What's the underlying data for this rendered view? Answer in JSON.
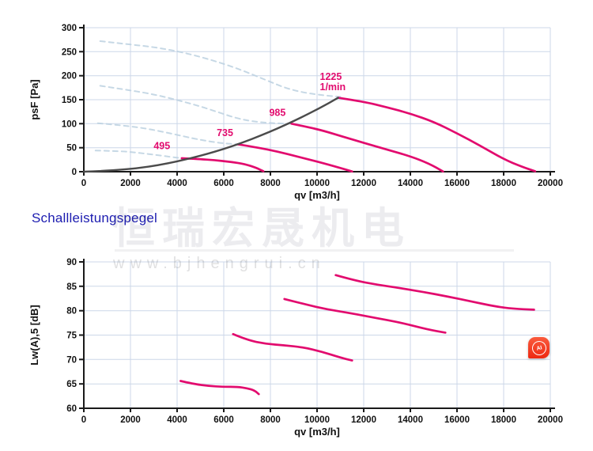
{
  "section_title": "Schallleistungspegel",
  "watermark": {
    "cn": "恒瑞宏晟机电",
    "url": "www.bjhengrui.cn"
  },
  "ai_badge": {
    "label": "AI"
  },
  "colors": {
    "pink": "#e20b6e",
    "dark": "#4b4b4b",
    "dashed": "#bcd1e1",
    "grid": "#ccd7e8",
    "axis": "#1a1a1a",
    "title_blue": "#1c1cb0",
    "badge_red": "#ee2912"
  },
  "chart_data": [
    {
      "type": "line",
      "xlabel": "qv [m3/h]",
      "ylabel": "psF [Pa]",
      "xlim": [
        0,
        20000
      ],
      "xstep": 2000,
      "ylim": [
        0,
        300
      ],
      "ystep": 50,
      "grid": true,
      "legend_position": "none",
      "curve_labels": [
        {
          "text": "495",
          "q": 3350,
          "v": 47,
          "anchor": "middle"
        },
        {
          "text": "735",
          "q": 6050,
          "v": 74,
          "anchor": "middle"
        },
        {
          "text": "985",
          "q": 8300,
          "v": 116,
          "anchor": "middle"
        },
        {
          "text": "1225",
          "q": 10120,
          "v": 191,
          "anchor": "start"
        },
        {
          "text": "1/min",
          "q": 10120,
          "v": 170,
          "anchor": "start"
        }
      ],
      "series": [
        {
          "name": "fan-curve-1225-unstable",
          "style": "dashed",
          "color": "dashed",
          "points": [
            [
              700,
              272
            ],
            [
              1800,
              266
            ],
            [
              2800,
              261
            ],
            [
              3800,
              253
            ],
            [
              4800,
              242
            ],
            [
              5800,
              228
            ],
            [
              6800,
              211
            ],
            [
              7800,
              191
            ],
            [
              8600,
              175
            ],
            [
              9300,
              166
            ],
            [
              10100,
              160
            ],
            [
              11000,
              156
            ]
          ]
        },
        {
          "name": "fan-curve-985-unstable",
          "style": "dashed",
          "color": "dashed",
          "points": [
            [
              700,
              179
            ],
            [
              1800,
              171
            ],
            [
              2800,
              163
            ],
            [
              3800,
              152
            ],
            [
              4800,
              139
            ],
            [
              5700,
              125
            ],
            [
              6500,
              112
            ],
            [
              7200,
              105
            ],
            [
              8000,
              101
            ],
            [
              8900,
              100
            ]
          ]
        },
        {
          "name": "fan-curve-735-unstable",
          "style": "dashed",
          "color": "dashed",
          "points": [
            [
              600,
              101
            ],
            [
              1800,
              96
            ],
            [
              2800,
              89
            ],
            [
              3800,
              79
            ],
            [
              4700,
              69
            ],
            [
              5400,
              63
            ],
            [
              6000,
              59
            ],
            [
              6600,
              57
            ]
          ]
        },
        {
          "name": "fan-curve-495-unstable",
          "style": "dashed",
          "color": "dashed",
          "points": [
            [
              500,
              44
            ],
            [
              1600,
              43
            ],
            [
              2400,
              39
            ],
            [
              3100,
              35
            ],
            [
              3700,
              31
            ],
            [
              4200,
              28
            ]
          ]
        },
        {
          "name": "fan-curve-495",
          "style": "solid",
          "color": "pink",
          "points": [
            [
              4200,
              28
            ],
            [
              4900,
              26.5
            ],
            [
              5600,
              24
            ],
            [
              6300,
              20.5
            ],
            [
              6900,
              16
            ],
            [
              7400,
              8
            ],
            [
              7700,
              1
            ]
          ]
        },
        {
          "name": "fan-curve-735",
          "style": "solid",
          "color": "pink",
          "points": [
            [
              6600,
              57
            ],
            [
              7400,
              51
            ],
            [
              8300,
              42
            ],
            [
              9200,
              31
            ],
            [
              10100,
              20
            ],
            [
              10900,
              9
            ],
            [
              11500,
              0.5
            ]
          ]
        },
        {
          "name": "fan-curve-985",
          "style": "solid",
          "color": "pink",
          "points": [
            [
              8900,
              100
            ],
            [
              9600,
              93
            ],
            [
              10300,
              85
            ],
            [
              11100,
              73
            ],
            [
              12000,
              60
            ],
            [
              13000,
              46
            ],
            [
              14000,
              32
            ],
            [
              14800,
              17
            ],
            [
              15400,
              0.5
            ]
          ]
        },
        {
          "name": "fan-curve-1225",
          "style": "solid",
          "color": "pink",
          "points": [
            [
              10900,
              154
            ],
            [
              12000,
              146
            ],
            [
              13000,
              134
            ],
            [
              14000,
              121
            ],
            [
              15000,
              104
            ],
            [
              16000,
              80
            ],
            [
              17000,
              54
            ],
            [
              18000,
              26
            ],
            [
              18800,
              10
            ],
            [
              19350,
              1
            ]
          ]
        },
        {
          "name": "system-resistance-curve",
          "style": "solid",
          "color": "dark",
          "points": [
            [
              0,
              0
            ],
            [
              1600,
              3
            ],
            [
              3200,
              13
            ],
            [
              4800,
              30
            ],
            [
              6400,
              53
            ],
            [
              8000,
              83
            ],
            [
              9200,
              110
            ],
            [
              10100,
              132
            ],
            [
              10900,
              154
            ]
          ]
        }
      ]
    },
    {
      "type": "line",
      "xlabel": "qv [m3/h]",
      "ylabel": "Lw(A),5 [dB]",
      "xlim": [
        0,
        20000
      ],
      "xstep": 2000,
      "ylim": [
        60,
        90
      ],
      "ystep": 5,
      "grid": true,
      "legend_position": "none",
      "curve_labels": [],
      "series": [
        {
          "name": "sound-curve-495",
          "style": "solid",
          "color": "pink",
          "points": [
            [
              4150,
              65.6
            ],
            [
              4700,
              65.0
            ],
            [
              5300,
              64.6
            ],
            [
              6000,
              64.4
            ],
            [
              6600,
              64.4
            ],
            [
              7000,
              64.1
            ],
            [
              7300,
              63.7
            ],
            [
              7500,
              62.9
            ]
          ]
        },
        {
          "name": "sound-curve-735",
          "style": "solid",
          "color": "pink",
          "points": [
            [
              6400,
              75.2
            ],
            [
              7000,
              74.0
            ],
            [
              7800,
              73.2
            ],
            [
              8600,
              72.9
            ],
            [
              9400,
              72.5
            ],
            [
              10200,
              71.6
            ],
            [
              11000,
              70.4
            ],
            [
              11500,
              69.8
            ]
          ]
        },
        {
          "name": "sound-curve-985",
          "style": "solid",
          "color": "pink",
          "points": [
            [
              8600,
              82.4
            ],
            [
              9500,
              81.3
            ],
            [
              10400,
              80.3
            ],
            [
              11300,
              79.6
            ],
            [
              12200,
              78.8
            ],
            [
              13000,
              78.1
            ],
            [
              13800,
              77.3
            ],
            [
              14700,
              76.2
            ],
            [
              15500,
              75.5
            ]
          ]
        },
        {
          "name": "sound-curve-1225",
          "style": "solid",
          "color": "pink",
          "points": [
            [
              10800,
              87.3
            ],
            [
              11600,
              86.2
            ],
            [
              12600,
              85.3
            ],
            [
              13600,
              84.6
            ],
            [
              14600,
              83.8
            ],
            [
              15600,
              82.9
            ],
            [
              16600,
              81.9
            ],
            [
              17600,
              80.9
            ],
            [
              18400,
              80.4
            ],
            [
              19300,
              80.2
            ]
          ]
        }
      ]
    }
  ]
}
